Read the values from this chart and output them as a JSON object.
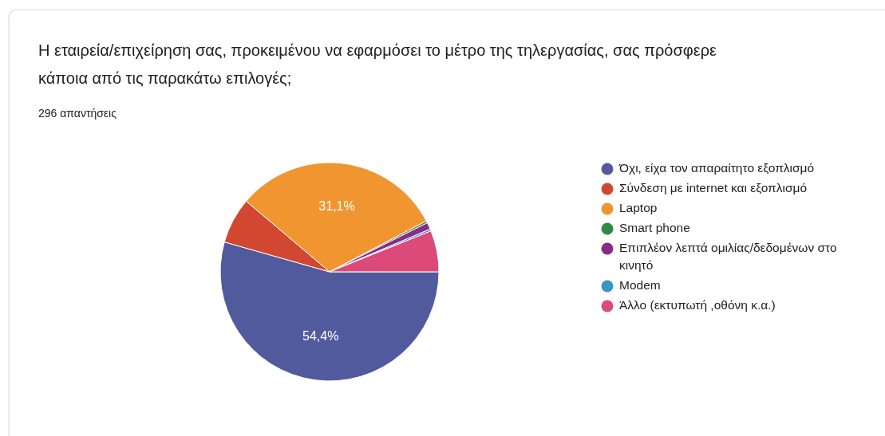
{
  "chart_data": {
    "type": "pie",
    "title": "Η εταιρεία/επιχείρηση σας, προκειμένου να εφαρμόσει το μέτρο της τηλεργασίας, σας πρόσφερε κάποια από τις παρακάτω επιλογές;",
    "subtitle": "296 απαντήσεις",
    "categories": [
      "Όχι, είχα τον απαραίτητο εξοπλισμό",
      "Σύνδεση με internet και εξοπλισμό",
      "Laptop",
      "Smart phone",
      "Επιπλέον λεπτά ομιλίας/δεδομένων στο κινητό",
      "Modem",
      "Άλλο (εκτυπωτή ,οθόνη κ.α.)"
    ],
    "values": [
      54.4,
      6.8,
      31.1,
      0.3,
      1.0,
      0.3,
      6.1
    ],
    "colors": [
      "#525a9e",
      "#d2472f",
      "#f0952f",
      "#2e8a45",
      "#8a2b86",
      "#3b95c0",
      "#dc4a7a"
    ],
    "value_labels": [
      "54,4%",
      null,
      "31,1%",
      null,
      null,
      null,
      null
    ],
    "legend": "right"
  }
}
